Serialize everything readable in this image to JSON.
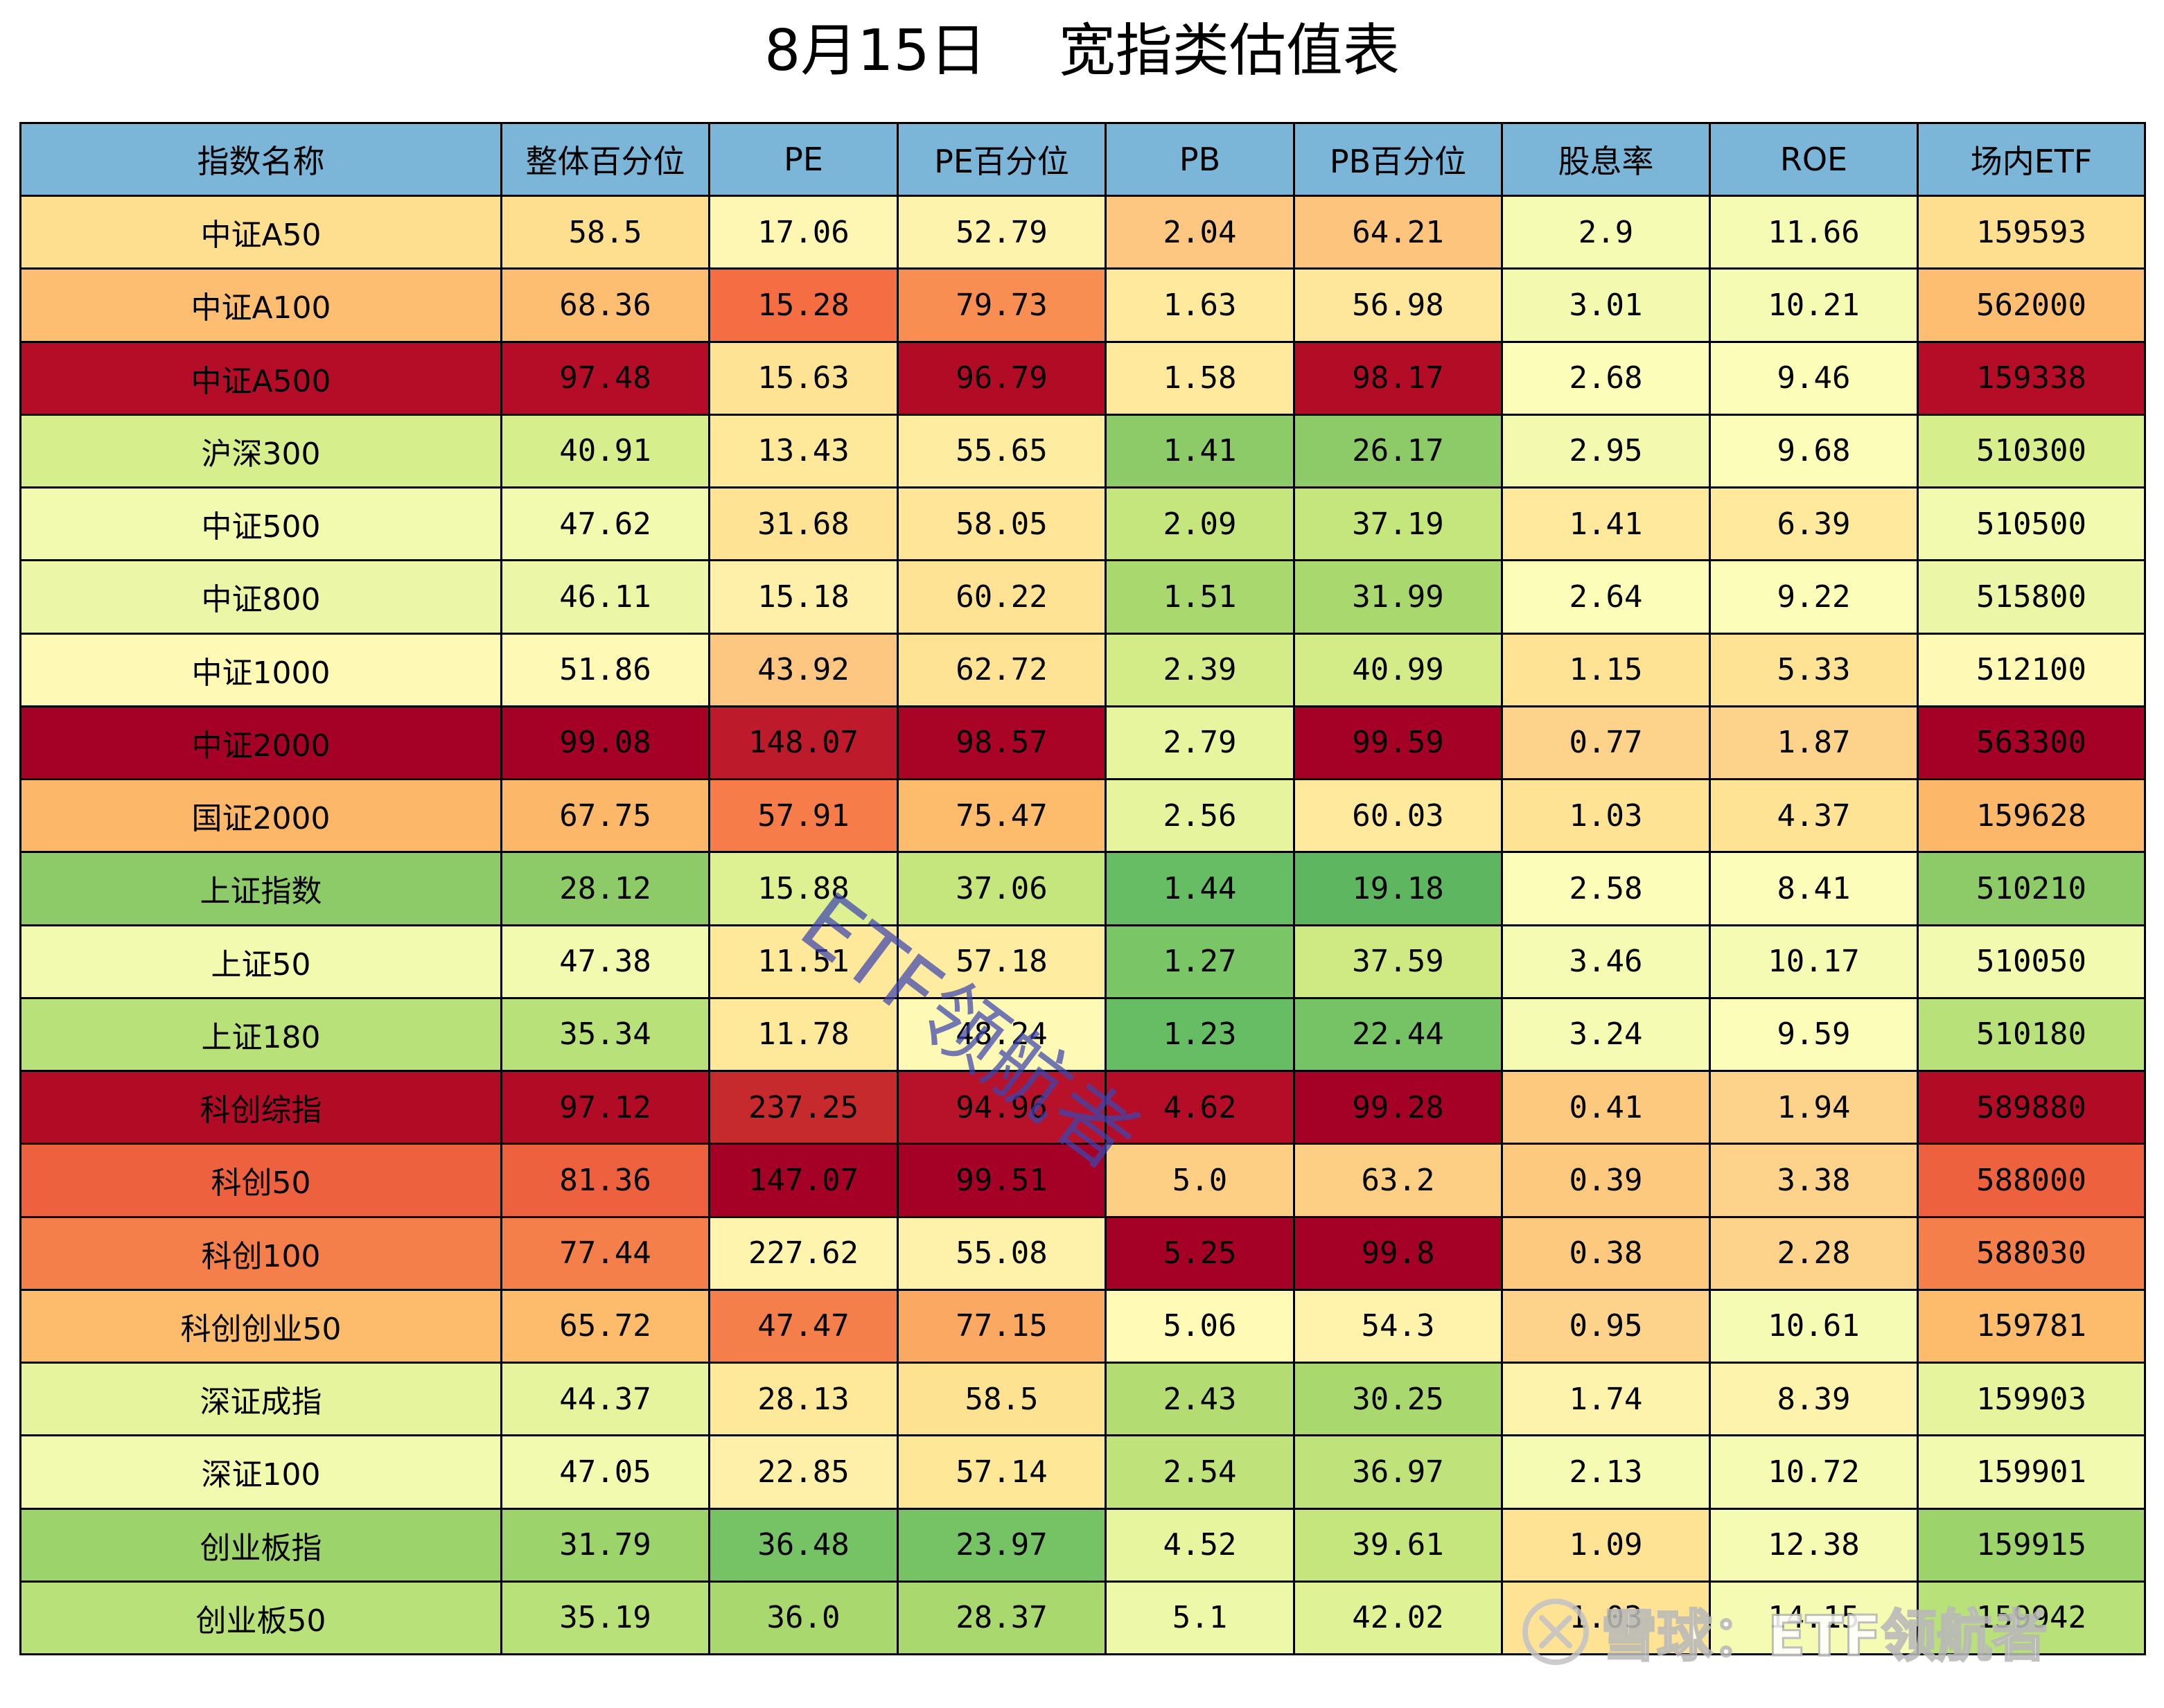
{
  "title": "8月15日    宽指类估值表",
  "table": {
    "headers": [
      "指数名称",
      "整体百分位",
      "PE",
      "PE百分位",
      "PB",
      "PB百分位",
      "股息率",
      "ROE",
      "场内ETF"
    ],
    "header_bg": "#7bb5d8",
    "rows": [
      {
        "cells": [
          "中证A50",
          "58.5",
          "17.06",
          "52.79",
          "2.04",
          "64.21",
          "2.9",
          "11.66",
          "159593"
        ],
        "colors": [
          "#fedf8f",
          "#fedf8f",
          "#fef7b3",
          "#fef3ad",
          "#fdc781",
          "#fdc47d",
          "#f6fbb3",
          "#f6fbb3",
          "#fedf8f"
        ]
      },
      {
        "cells": [
          "中证A100",
          "68.36",
          "15.28",
          "79.73",
          "1.63",
          "56.98",
          "3.01",
          "10.21",
          "562000"
        ],
        "colors": [
          "#fdbe72",
          "#fdbe72",
          "#f46d43",
          "#f88e52",
          "#fee99c",
          "#fee69b",
          "#f3fab0",
          "#f6fbb3",
          "#fdbe72"
        ]
      },
      {
        "cells": [
          "中证A500",
          "97.48",
          "15.63",
          "96.79",
          "1.58",
          "98.17",
          "2.68",
          "9.46",
          "159338"
        ],
        "colors": [
          "#b50d27",
          "#b50d27",
          "#fee394",
          "#b10b26",
          "#fee99c",
          "#b20c26",
          "#fbfdb8",
          "#fbfdb8",
          "#b50d27"
        ]
      },
      {
        "cells": [
          "沪深300",
          "40.91",
          "13.43",
          "55.65",
          "1.41",
          "26.17",
          "2.95",
          "9.68",
          "510300"
        ],
        "colors": [
          "#d6ee8b",
          "#d6ee8b",
          "#fee89a",
          "#feeca1",
          "#8ccb67",
          "#8ccb67",
          "#f3fab0",
          "#fbfdb8",
          "#d6ee8b"
        ]
      },
      {
        "cells": [
          "中证500",
          "47.62",
          "31.68",
          "58.05",
          "2.09",
          "37.19",
          "1.41",
          "6.39",
          "510500"
        ],
        "colors": [
          "#f2fab0",
          "#f2fab0",
          "#fee394",
          "#fee597",
          "#c5e57d",
          "#c5e57d",
          "#fee99c",
          "#fee99c",
          "#f2fab0"
        ]
      },
      {
        "cells": [
          "中证800",
          "46.11",
          "15.18",
          "60.22",
          "1.51",
          "31.99",
          "2.64",
          "9.22",
          "515800"
        ],
        "colors": [
          "#ebf7a6",
          "#ebf7a6",
          "#fef0a8",
          "#fee394",
          "#a8d86e",
          "#a8d86e",
          "#fbfdb8",
          "#fbfdb8",
          "#ebf7a6"
        ]
      },
      {
        "cells": [
          "中证1000",
          "51.86",
          "43.92",
          "62.72",
          "2.39",
          "40.99",
          "1.15",
          "5.33",
          "512100"
        ],
        "colors": [
          "#fefab6",
          "#fefab6",
          "#fdc781",
          "#fee394",
          "#d3ec87",
          "#d3ec87",
          "#fee394",
          "#fee394",
          "#fefab6"
        ]
      },
      {
        "cells": [
          "中证2000",
          "99.08",
          "148.07",
          "98.57",
          "2.79",
          "99.59",
          "0.77",
          "1.87",
          "563300"
        ],
        "colors": [
          "#a50026",
          "#a50026",
          "#bd1a2b",
          "#a90426",
          "#e8f59f",
          "#a50026",
          "#fdd28a",
          "#fdd28a",
          "#a50026"
        ]
      },
      {
        "cells": [
          "国证2000",
          "67.75",
          "57.91",
          "75.47",
          "2.56",
          "60.03",
          "1.03",
          "4.37",
          "159628"
        ],
        "colors": [
          "#fdb768",
          "#fdb768",
          "#f67d4a",
          "#fdbb6c",
          "#e6f59d",
          "#fee99c",
          "#fee394",
          "#fee394",
          "#fdb768"
        ]
      },
      {
        "cells": [
          "上证指数",
          "28.12",
          "15.88",
          "37.06",
          "1.44",
          "19.18",
          "2.58",
          "8.41",
          "510210"
        ],
        "colors": [
          "#8ccb67",
          "#8ccb67",
          "#ddf193",
          "#c5e57d",
          "#66bd63",
          "#5eb660",
          "#fbfdb8",
          "#fbfdb8",
          "#8ccb67"
        ]
      },
      {
        "cells": [
          "上证50",
          "47.38",
          "11.51",
          "57.18",
          "1.27",
          "37.59",
          "3.46",
          "10.17",
          "510050"
        ],
        "colors": [
          "#f2fab0",
          "#f2fab0",
          "#fee89a",
          "#feeca1",
          "#7ac565",
          "#cfe983",
          "#f6fbb3",
          "#f6fbb3",
          "#f2fab0"
        ]
      },
      {
        "cells": [
          "上证180",
          "35.34",
          "11.78",
          "48.24",
          "1.23",
          "22.44",
          "3.24",
          "9.59",
          "510180"
        ],
        "colors": [
          "#b9e179",
          "#b9e179",
          "#fee89a",
          "#fef9b4",
          "#66bd63",
          "#76c365",
          "#f6fbb3",
          "#fbfdb8",
          "#b9e179"
        ]
      },
      {
        "cells": [
          "科创综指",
          "97.12",
          "237.25",
          "94.96",
          "4.62",
          "99.28",
          "0.41",
          "1.94",
          "589880"
        ],
        "colors": [
          "#b10b26",
          "#b10b26",
          "#c72a2c",
          "#b8122a",
          "#b50d27",
          "#a50026",
          "#fdc97f",
          "#fdd28a",
          "#b10b26"
        ]
      },
      {
        "cells": [
          "科创50",
          "81.36",
          "147.07",
          "99.51",
          "5.0",
          "63.2",
          "0.39",
          "3.38",
          "588000"
        ],
        "colors": [
          "#ee613e",
          "#ee613e",
          "#a50026",
          "#a50026",
          "#fdcf85",
          "#fdcf85",
          "#fdc97f",
          "#fdd28a",
          "#ee613e"
        ]
      },
      {
        "cells": [
          "科创100",
          "77.44",
          "227.62",
          "55.08",
          "5.25",
          "99.8",
          "0.38",
          "2.28",
          "588030"
        ],
        "colors": [
          "#f57f4a",
          "#f57f4a",
          "#fff4ad",
          "#fef2ab",
          "#a50026",
          "#a50026",
          "#fdc97f",
          "#fdd28a",
          "#f57f4a"
        ]
      },
      {
        "cells": [
          "科创创业50",
          "65.72",
          "47.47",
          "77.15",
          "5.06",
          "54.3",
          "0.95",
          "10.61",
          "159781"
        ],
        "colors": [
          "#fdbb6c",
          "#fdbb6c",
          "#f57f4a",
          "#fba862",
          "#fffab6",
          "#fff2aa",
          "#fdd28a",
          "#f6fbb3",
          "#fdbb6c"
        ]
      },
      {
        "cells": [
          "深证成指",
          "44.37",
          "28.13",
          "58.5",
          "2.43",
          "30.25",
          "1.74",
          "8.39",
          "159903"
        ],
        "colors": [
          "#e6f59d",
          "#e6f59d",
          "#fee89a",
          "#fde291",
          "#b3dc73",
          "#a8d86e",
          "#fef3ad",
          "#fef3ad",
          "#e6f59d"
        ]
      },
      {
        "cells": [
          "深证100",
          "47.05",
          "22.85",
          "57.14",
          "2.54",
          "36.97",
          "2.13",
          "10.72",
          "159901"
        ],
        "colors": [
          "#f2fab0",
          "#f2fab0",
          "#fef0a8",
          "#fee797",
          "#bfe27b",
          "#bfe27b",
          "#f6fbb3",
          "#f6fbb3",
          "#f2fab0"
        ]
      },
      {
        "cells": [
          "创业板指",
          "31.79",
          "36.48",
          "23.97",
          "4.52",
          "39.61",
          "1.09",
          "12.38",
          "159915"
        ],
        "colors": [
          "#9cd46b",
          "#9cd46b",
          "#76c365",
          "#76c365",
          "#e8f59f",
          "#c5e57d",
          "#fee394",
          "#f6fbb3",
          "#9cd46b"
        ]
      },
      {
        "cells": [
          "创业板50",
          "35.19",
          "36.0",
          "28.37",
          "5.1",
          "42.02",
          "1.03",
          "14.15",
          "159942"
        ],
        "colors": [
          "#b9e179",
          "#b9e179",
          "#a8d86e",
          "#a8d86e",
          "#edf8a8",
          "#dff296",
          "#fee394",
          "#f6fbb3",
          "#b9e179"
        ]
      }
    ]
  },
  "watermark": "ETF领航者",
  "brand": {
    "text": "雪球：ETF领航者",
    "logo_icon": "xueqiu-logo-icon"
  }
}
